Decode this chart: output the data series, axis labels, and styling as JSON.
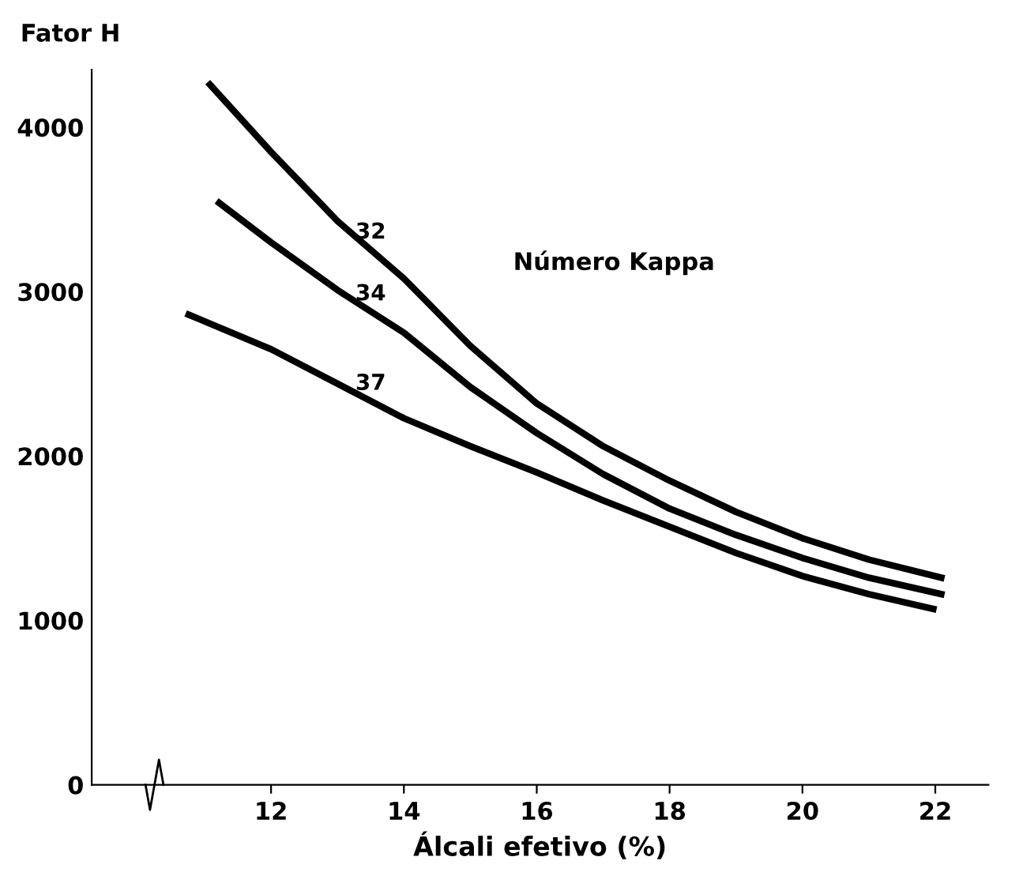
{
  "chart_data": {
    "type": "line",
    "xlabel": "Álcali efetivo (%)",
    "ylabel": "Fator H",
    "xlim": [
      9.3,
      22.8
    ],
    "ylim": [
      0,
      4350
    ],
    "xticks": [
      12,
      14,
      16,
      18,
      20,
      22
    ],
    "yticks": [
      0,
      1000,
      2000,
      3000,
      4000
    ],
    "grid": false,
    "legend": false,
    "marker": "none",
    "line_style": "solid",
    "series": [
      {
        "name": "32",
        "color": "#000000",
        "x": [
          11.08,
          12,
          13,
          14,
          15,
          16,
          17,
          18,
          19,
          20,
          21,
          22.09
        ],
        "values": [
          4260,
          3850,
          3430,
          3080,
          2670,
          2320,
          2060,
          1850,
          1660,
          1500,
          1370,
          1260
        ]
      },
      {
        "name": "34",
        "color": "#000000",
        "x": [
          11.22,
          12,
          13,
          14,
          15,
          16,
          17,
          18,
          19,
          20,
          21,
          22.09
        ],
        "values": [
          3540,
          3300,
          3010,
          2750,
          2420,
          2140,
          1890,
          1680,
          1520,
          1380,
          1260,
          1160
        ]
      },
      {
        "name": "37",
        "color": "#000000",
        "x": [
          10.76,
          12,
          13,
          14,
          15,
          16,
          17,
          18,
          19,
          20,
          21,
          21.97
        ],
        "values": [
          2860,
          2650,
          2440,
          2230,
          2060,
          1900,
          1730,
          1570,
          1410,
          1270,
          1160,
          1070
        ]
      }
    ],
    "annotations": [
      "Número Kappa"
    ]
  }
}
